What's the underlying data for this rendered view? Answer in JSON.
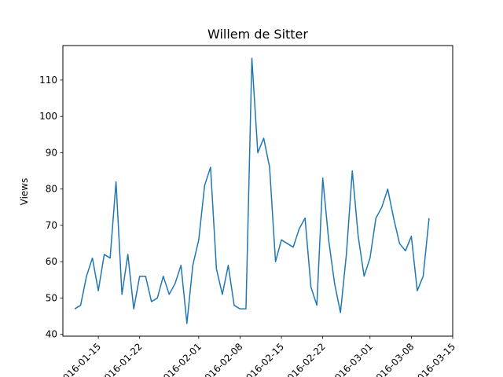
{
  "chart_data": {
    "type": "line",
    "title": "Willem de Sitter",
    "xlabel": "",
    "ylabel": "Views",
    "x_start": "2016-01-11",
    "x_end": "2016-03-13",
    "xlim": [
      "2016-01-09",
      "2016-03-15"
    ],
    "ylim": [
      39.5,
      119.5
    ],
    "yticks": [
      40,
      50,
      60,
      70,
      80,
      90,
      100,
      110
    ],
    "xticks": [
      "2016-01-15",
      "2016-01-22",
      "2016-02-01",
      "2016-02-08",
      "2016-02-15",
      "2016-02-22",
      "2016-03-01",
      "2016-03-08",
      "2016-03-15"
    ],
    "xtick_labels": [
      "2016-01-15",
      "2016-01-22",
      "2016-02-01",
      "2016-02-08",
      "2016-02-15",
      "2016-02-22",
      "2016-03-01",
      "2016-03-08",
      "2016-03-15"
    ],
    "values": [
      47,
      48,
      56,
      61,
      52,
      62,
      61,
      82,
      51,
      62,
      47,
      56,
      56,
      49,
      50,
      56,
      51,
      54,
      59,
      43,
      59,
      66,
      81,
      86,
      58,
      51,
      59,
      48,
      47,
      47,
      116,
      90,
      94,
      86,
      60,
      66,
      65,
      64,
      69,
      72,
      53,
      48,
      83,
      66,
      54,
      46,
      62,
      85,
      67,
      56,
      61,
      72,
      75,
      80,
      72,
      65,
      63,
      67,
      52,
      56,
      72
    ],
    "line_color": "#1f77b4",
    "grid": false
  }
}
